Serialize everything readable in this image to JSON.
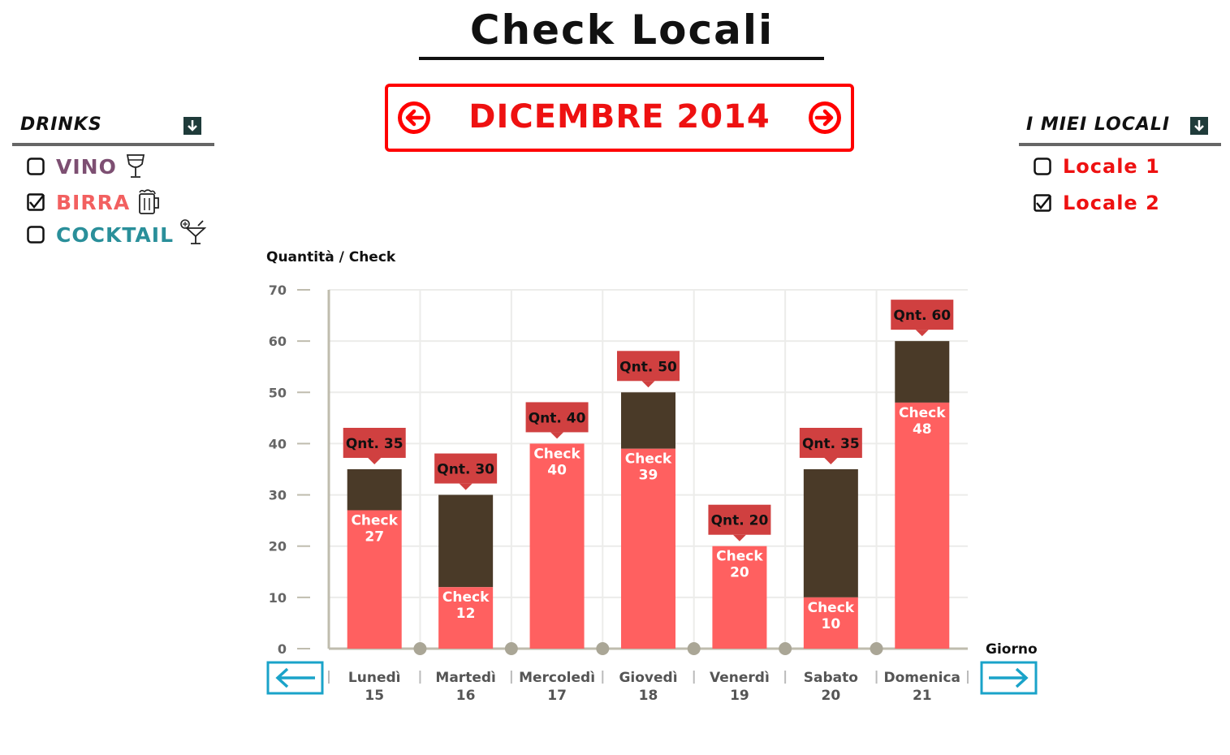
{
  "header": {
    "title": "Check Locali"
  },
  "month_nav": {
    "label": "DICEMBRE 2014"
  },
  "drinks": {
    "title": "DRINKS",
    "items": [
      {
        "label": "VINO",
        "checked": false,
        "color": "#7d4f72",
        "icon": "wine-glass-icon"
      },
      {
        "label": "BIRRA",
        "checked": true,
        "color": "#f26060",
        "icon": "beer-mug-icon"
      },
      {
        "label": "COCKTAIL",
        "checked": false,
        "color": "#2a8f9a",
        "icon": "cocktail-icon"
      }
    ]
  },
  "locali": {
    "title": "I MIEI LOCALI",
    "items": [
      {
        "label": "Locale 1",
        "checked": false,
        "color": "#ee1111"
      },
      {
        "label": "Locale 2",
        "checked": true,
        "color": "#ee1111"
      }
    ]
  },
  "colors": {
    "check": "#ff6060",
    "quantity": "#4a3a28",
    "callout": "#d04040",
    "nav_arrow": "#1aa3c9",
    "axis": "#bfbcae",
    "dot": "#aaa696"
  },
  "chart_data": {
    "type": "bar",
    "stacked": true,
    "ylabel": "Quantità / Check",
    "xlabel": "Giorno",
    "ylim": [
      0,
      70
    ],
    "yticks": [
      0,
      10,
      20,
      30,
      40,
      50,
      60,
      70
    ],
    "grid": true,
    "categories": [
      {
        "day": "Lunedì",
        "date": "15"
      },
      {
        "day": "Martedì",
        "date": "16"
      },
      {
        "day": "Mercoledì",
        "date": "17"
      },
      {
        "day": "Giovedì",
        "date": "18"
      },
      {
        "day": "Venerdì",
        "date": "19"
      },
      {
        "day": "Sabato",
        "date": "20"
      },
      {
        "day": "Domenica",
        "date": "21"
      }
    ],
    "check_word": "Check",
    "qnt_prefix": "Qnt.",
    "check": [
      27,
      12,
      40,
      39,
      20,
      10,
      48
    ],
    "quantity": [
      35,
      30,
      40,
      50,
      20,
      35,
      60
    ]
  }
}
